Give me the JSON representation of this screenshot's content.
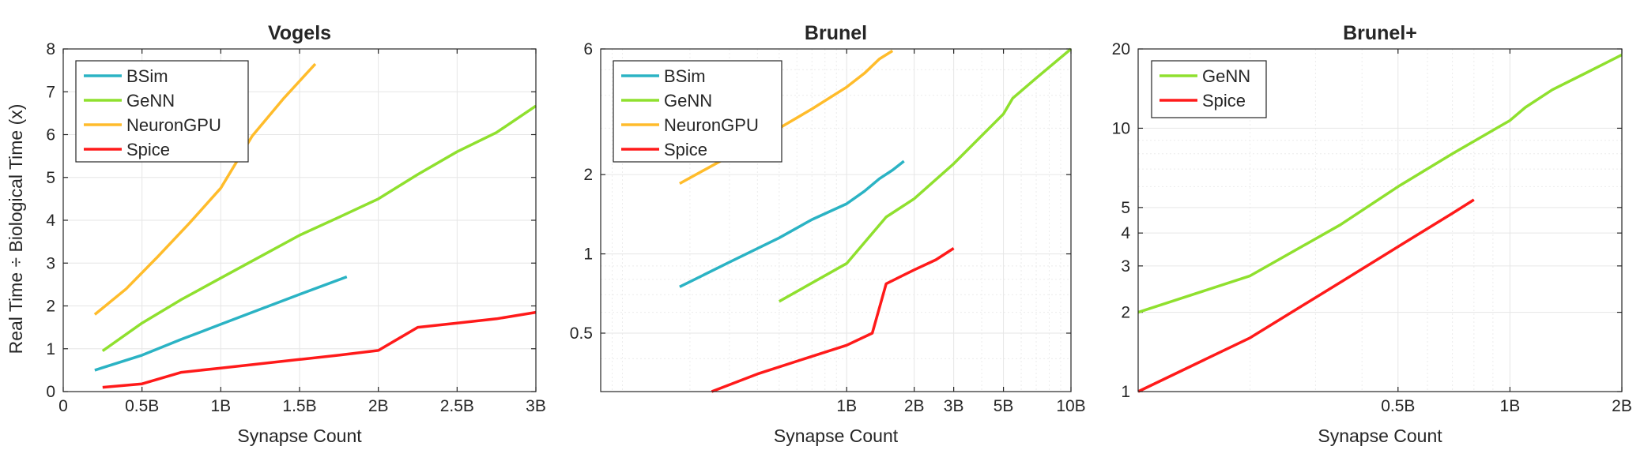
{
  "figure": {
    "ylabel_shared": "Real Time  ÷  Biological Time (x)"
  },
  "colors": {
    "BSim": "#2bb3c4",
    "GeNN": "#8fe02e",
    "NeuronGPU": "#ffbc2b",
    "Spice": "#ff1a1a"
  },
  "chart_data": [
    {
      "type": "line",
      "title": "Vogels",
      "xlabel": "Synapse Count",
      "ylabel": "Real Time  ÷  Biological Time (x)",
      "xscale": "linear",
      "yscale": "linear",
      "xlim": [
        0,
        3000000000
      ],
      "ylim": [
        0,
        8
      ],
      "xticks": [
        0,
        500000000,
        1000000000,
        1500000000,
        2000000000,
        2500000000,
        3000000000
      ],
      "xticklabels": [
        "0",
        "0.5B",
        "1B",
        "1.5B",
        "2B",
        "2.5B",
        "3B"
      ],
      "yticks": [
        0,
        1,
        2,
        3,
        4,
        5,
        6,
        7,
        8
      ],
      "yticklabels": [
        "0",
        "1",
        "2",
        "3",
        "4",
        "5",
        "6",
        "7",
        "8"
      ],
      "grid": true,
      "legend": "top-left",
      "series": [
        {
          "name": "BSim",
          "x": [
            200000000,
            500000000,
            750000000,
            1000000000,
            1250000000,
            1500000000,
            1800000000
          ],
          "y": [
            0.5,
            0.85,
            1.22,
            1.57,
            1.92,
            2.27,
            2.68
          ]
        },
        {
          "name": "GeNN",
          "x": [
            250000000,
            500000000,
            750000000,
            1000000000,
            1250000000,
            1500000000,
            1750000000,
            2000000000,
            2250000000,
            2500000000,
            2750000000,
            3000000000
          ],
          "y": [
            0.95,
            1.6,
            2.15,
            2.65,
            3.15,
            3.65,
            4.07,
            4.5,
            5.07,
            5.6,
            6.05,
            6.67
          ]
        },
        {
          "name": "NeuronGPU",
          "x": [
            200000000,
            400000000,
            600000000,
            800000000,
            1000000000,
            1200000000,
            1400000000,
            1600000000
          ],
          "y": [
            1.8,
            2.4,
            3.15,
            3.93,
            4.75,
            5.97,
            6.85,
            7.65
          ]
        },
        {
          "name": "Spice",
          "x": [
            250000000,
            500000000,
            750000000,
            1000000000,
            1250000000,
            1500000000,
            1750000000,
            2000000000,
            2250000000,
            2500000000,
            2750000000,
            3000000000
          ],
          "y": [
            0.1,
            0.18,
            0.45,
            0.55,
            0.65,
            0.75,
            0.85,
            0.96,
            1.5,
            1.6,
            1.7,
            1.85
          ]
        }
      ]
    },
    {
      "type": "line",
      "title": "Brunel",
      "xlabel": "Synapse Count",
      "ylabel": "",
      "xscale": "log",
      "yscale": "log",
      "xlim": [
        80000000,
        10000000000
      ],
      "ylim": [
        0.3,
        6
      ],
      "xticks": [
        1000000000,
        2000000000,
        3000000000,
        5000000000,
        10000000000
      ],
      "xticklabels": [
        "1B",
        "2B",
        "3B",
        "5B",
        "10B"
      ],
      "yticks": [
        0.5,
        1,
        2,
        6
      ],
      "yticklabels": [
        "0.5",
        "1",
        "2",
        "6"
      ],
      "grid": true,
      "legend": "top-left",
      "series": [
        {
          "name": "BSim",
          "x": [
            180000000,
            300000000,
            500000000,
            700000000,
            1000000000,
            1200000000,
            1400000000,
            1600000000,
            1800000000
          ],
          "y": [
            0.75,
            0.93,
            1.15,
            1.35,
            1.55,
            1.73,
            1.93,
            2.08,
            2.25
          ]
        },
        {
          "name": "GeNN",
          "x": [
            500000000,
            1000000000,
            1500000000,
            2000000000,
            3000000000,
            5000000000,
            5500000000,
            7000000000,
            10000000000
          ],
          "y": [
            0.66,
            0.92,
            1.38,
            1.62,
            2.2,
            3.4,
            3.9,
            4.65,
            6.0
          ]
        },
        {
          "name": "NeuronGPU",
          "x": [
            180000000,
            300000000,
            500000000,
            700000000,
            1000000000,
            1200000000,
            1400000000,
            1600000000
          ],
          "y": [
            1.85,
            2.35,
            3.0,
            3.55,
            4.3,
            4.85,
            5.5,
            5.9
          ]
        },
        {
          "name": "Spice",
          "x": [
            250000000,
            400000000,
            650000000,
            1000000000,
            1300000000,
            1500000000,
            2000000000,
            2500000000,
            3000000000
          ],
          "y": [
            0.3,
            0.35,
            0.4,
            0.45,
            0.5,
            0.77,
            0.87,
            0.95,
            1.05
          ]
        }
      ]
    },
    {
      "type": "line",
      "title": "Brunel+",
      "xlabel": "Synapse Count",
      "ylabel": "",
      "xscale": "log",
      "yscale": "log",
      "xlim": [
        100000000,
        2000000000
      ],
      "ylim": [
        1,
        20
      ],
      "xticks": [
        500000000,
        1000000000,
        2000000000
      ],
      "xticklabels": [
        "0.5B",
        "1B",
        "2B"
      ],
      "yticks": [
        1,
        2,
        3,
        4,
        5,
        10,
        20
      ],
      "yticklabels": [
        "1",
        "2",
        "3",
        "4",
        "5",
        "10",
        "20"
      ],
      "grid": true,
      "legend": "top-left",
      "series": [
        {
          "name": "GeNN",
          "x": [
            100000000,
            200000000,
            350000000,
            500000000,
            700000000,
            1000000000,
            1100000000,
            1300000000,
            1600000000,
            2000000000
          ],
          "y": [
            2.0,
            2.75,
            4.3,
            6.0,
            8.0,
            10.7,
            12.0,
            14.0,
            16.2,
            19.0
          ]
        },
        {
          "name": "Spice",
          "x": [
            100000000,
            200000000,
            350000000,
            500000000,
            700000000,
            800000000
          ],
          "y": [
            1.0,
            1.6,
            2.6,
            3.55,
            4.75,
            5.35
          ]
        }
      ]
    }
  ]
}
